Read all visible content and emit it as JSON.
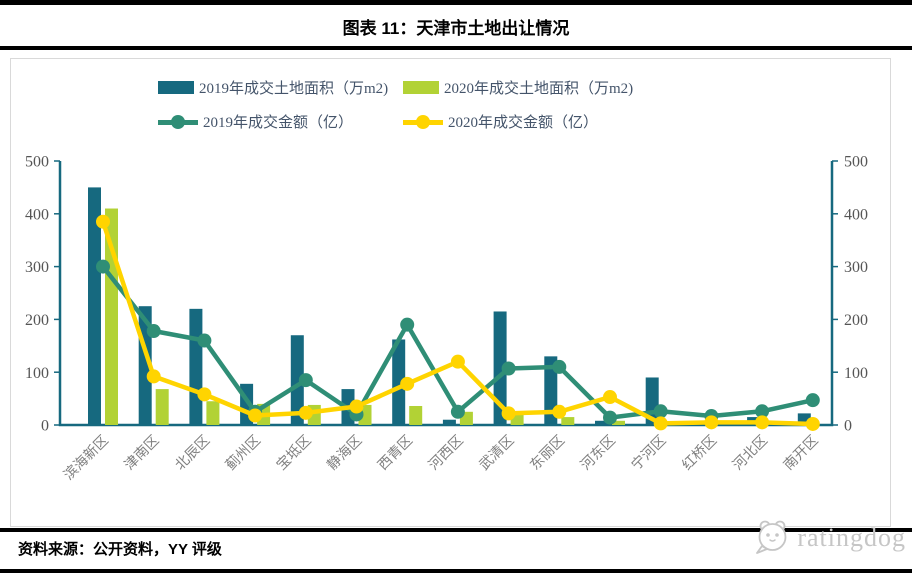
{
  "header": {
    "title": "图表 11：天津市土地出让情况"
  },
  "footer": {
    "source": "资料来源：公开资料，YY 评级"
  },
  "logo": {
    "text": "ratingdog",
    "icon": "dog-face-icon",
    "color": "#c6c6c6"
  },
  "chart_data": {
    "type": "bar+line combo",
    "title": "天津市土地出让情况",
    "categories": [
      "滨海新区",
      "津南区",
      "北辰区",
      "蓟州区",
      "宝坻区",
      "静海区",
      "西青区",
      "河西区",
      "武清区",
      "东丽区",
      "河东区",
      "宁河区",
      "红桥区",
      "河北区",
      "南开区"
    ],
    "series": [
      {
        "name": "2019年成交土地面积（万m2)",
        "type": "bar",
        "axis": "left",
        "color": "#16697f",
        "values": [
          450,
          225,
          220,
          78,
          170,
          68,
          162,
          10,
          215,
          130,
          8,
          90,
          0,
          15,
          22
        ]
      },
      {
        "name": "2020年成交土地面积（万m2)",
        "type": "bar",
        "axis": "left",
        "color": "#b2d235",
        "values": [
          410,
          68,
          45,
          40,
          38,
          38,
          36,
          25,
          22,
          15,
          8,
          0,
          0,
          0,
          0
        ]
      },
      {
        "name": "2019年成交金额（亿）",
        "type": "line",
        "axis": "right",
        "color": "#2f8e76",
        "values": [
          300,
          178,
          160,
          25,
          85,
          20,
          190,
          25,
          107,
          110,
          14,
          26,
          17,
          26,
          47
        ]
      },
      {
        "name": "2020年成交金额（亿）",
        "type": "line",
        "axis": "right",
        "color": "#ffd400",
        "values": [
          385,
          92,
          58,
          18,
          23,
          35,
          78,
          120,
          22,
          25,
          53,
          3,
          5,
          5,
          2
        ]
      }
    ],
    "left_axis": {
      "min": 0,
      "max": 500,
      "step": 100,
      "ticks": [
        "0",
        "100",
        "200",
        "300",
        "400",
        "500"
      ]
    },
    "right_axis": {
      "min": 0,
      "max": 500,
      "step": 100,
      "ticks": [
        "0",
        "100",
        "200",
        "300",
        "400",
        "500"
      ]
    },
    "legend_position": "top",
    "grid": "off",
    "colors": {
      "axis_line": "#16697f",
      "tick_label": "#555555",
      "x_label": "#7f7f7f",
      "legend_text": "#44546a"
    }
  }
}
